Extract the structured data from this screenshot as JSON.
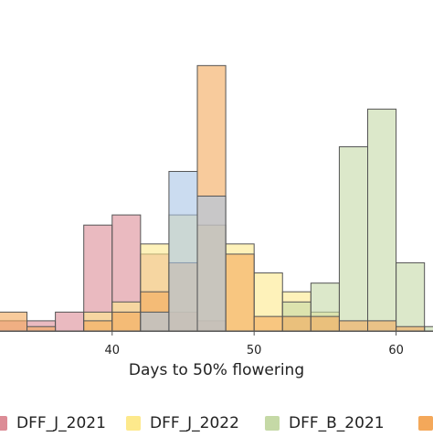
{
  "chart_data": {
    "type": "bar",
    "xlabel": "Days to 50% flowering",
    "ylabel": "",
    "title": "",
    "xticks": [
      40,
      50,
      60
    ],
    "bin_width": 2,
    "xlim": [
      32.1,
      62.6
    ],
    "ylim": [
      0,
      20.3
    ],
    "series": [
      {
        "name": "DFF_J_2021",
        "color": "#dc8c96",
        "bins": [
          {
            "x0": 32,
            "x1": 34,
            "count": 0.7
          },
          {
            "x0": 34,
            "x1": 36,
            "count": 0.7
          },
          {
            "x0": 36,
            "x1": 38,
            "count": 1.3
          },
          {
            "x0": 38,
            "x1": 40,
            "count": 7.3
          },
          {
            "x0": 40,
            "x1": 42,
            "count": 8.0
          },
          {
            "x0": 42,
            "x1": 44,
            "count": 5.3
          },
          {
            "x0": 44,
            "x1": 46,
            "count": 1.3
          },
          {
            "x0": 46,
            "x1": 48,
            "count": 0.7
          }
        ]
      },
      {
        "name": "DFF_J_2022",
        "color": "#fde98c",
        "bins": [
          {
            "x0": 38,
            "x1": 40,
            "count": 1.3
          },
          {
            "x0": 40,
            "x1": 42,
            "count": 2.0
          },
          {
            "x0": 42,
            "x1": 44,
            "count": 6.0
          },
          {
            "x0": 44,
            "x1": 46,
            "count": 8.0
          },
          {
            "x0": 46,
            "x1": 48,
            "count": 7.3
          },
          {
            "x0": 48,
            "x1": 50,
            "count": 6.0
          },
          {
            "x0": 50,
            "x1": 52,
            "count": 4.0
          },
          {
            "x0": 52,
            "x1": 54,
            "count": 2.7
          },
          {
            "x0": 54,
            "x1": 56,
            "count": 1.3
          }
        ]
      },
      {
        "name": "DFF_B_2021",
        "color": "#c5d9a6",
        "bins": [
          {
            "x0": 52,
            "x1": 54,
            "count": 2.0
          },
          {
            "x0": 54,
            "x1": 56,
            "count": 3.3
          },
          {
            "x0": 56,
            "x1": 58,
            "count": 12.7
          },
          {
            "x0": 58,
            "x1": 60,
            "count": 15.3
          },
          {
            "x0": 60,
            "x1": 62,
            "count": 4.7
          },
          {
            "x0": 62,
            "x1": 64,
            "count": 0.3
          }
        ]
      },
      {
        "name": "",
        "color": "#f4a85a",
        "bins": [
          {
            "x0": 32,
            "x1": 34,
            "count": 1.3
          },
          {
            "x0": 34,
            "x1": 36,
            "count": 0.3
          },
          {
            "x0": 38,
            "x1": 40,
            "count": 0.7
          },
          {
            "x0": 40,
            "x1": 42,
            "count": 1.3
          },
          {
            "x0": 42,
            "x1": 44,
            "count": 2.7
          },
          {
            "x0": 44,
            "x1": 46,
            "count": 4.7
          },
          {
            "x0": 46,
            "x1": 48,
            "count": 18.3
          },
          {
            "x0": 48,
            "x1": 50,
            "count": 5.3
          },
          {
            "x0": 50,
            "x1": 52,
            "count": 1.0
          },
          {
            "x0": 52,
            "x1": 54,
            "count": 1.0
          },
          {
            "x0": 54,
            "x1": 56,
            "count": 1.0
          },
          {
            "x0": 56,
            "x1": 58,
            "count": 0.7
          },
          {
            "x0": 58,
            "x1": 60,
            "count": 0.7
          },
          {
            "x0": 60,
            "x1": 62,
            "count": 0.3
          }
        ]
      },
      {
        "name": "",
        "color": "#a9c4e6",
        "bins": [
          {
            "x0": 42,
            "x1": 44,
            "count": 1.3
          },
          {
            "x0": 44,
            "x1": 46,
            "count": 11.0
          },
          {
            "x0": 46,
            "x1": 48,
            "count": 9.3
          }
        ]
      }
    ]
  },
  "legend": {
    "entries": [
      {
        "label": "DFF_J_2021",
        "color": "#dc8c96"
      },
      {
        "label": "DFF_J_2022",
        "color": "#fde98c"
      },
      {
        "label": "DFF_B_2021",
        "color": "#c5d9a6"
      },
      {
        "label": "",
        "color": "#f4a85a"
      }
    ]
  }
}
